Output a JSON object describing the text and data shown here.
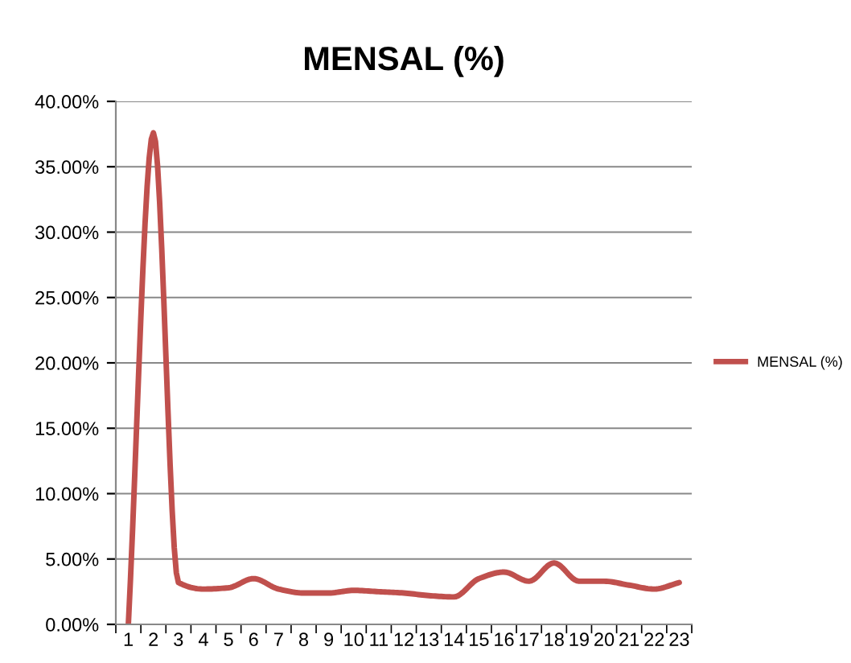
{
  "chart_data": {
    "type": "line",
    "title": "MENSAL (%)",
    "categories": [
      "1",
      "2",
      "3",
      "4",
      "5",
      "6",
      "7",
      "8",
      "9",
      "10",
      "11",
      "12",
      "13",
      "14",
      "15",
      "16",
      "17",
      "18",
      "19",
      "20",
      "21",
      "22",
      "23"
    ],
    "series": [
      {
        "name": "MENSAL (%)",
        "color": "#c0504d",
        "values": [
          0,
          37.6,
          3.2,
          2.7,
          2.8,
          3.5,
          2.7,
          2.4,
          2.4,
          2.6,
          2.5,
          2.4,
          2.2,
          2.1,
          3.5,
          4.0,
          3.3,
          4.7,
          3.3,
          3.3,
          3.0,
          2.7,
          3.2
        ]
      }
    ],
    "ylim": [
      0,
      40
    ],
    "yticks": [
      {
        "value": 0,
        "label": "0.00%"
      },
      {
        "value": 5,
        "label": "5.00%"
      },
      {
        "value": 10,
        "label": "10.00%"
      },
      {
        "value": 15,
        "label": "15.00%"
      },
      {
        "value": 20,
        "label": "20.00%"
      },
      {
        "value": 25,
        "label": "25.00%"
      },
      {
        "value": 30,
        "label": "30.00%"
      },
      {
        "value": 35,
        "label": "35.00%"
      },
      {
        "value": 40,
        "label": "40.00%"
      }
    ],
    "grid": "y",
    "legend": "right",
    "marker": "none",
    "line_style": "solid"
  }
}
